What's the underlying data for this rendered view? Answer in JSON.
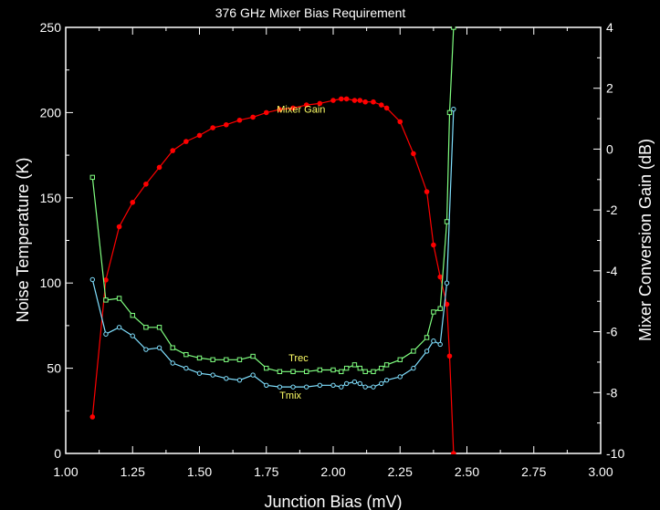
{
  "chart_data": {
    "type": "line",
    "title": "376 GHz Mixer Bias Requirement",
    "xlabel": "Junction Bias (mV)",
    "ylabel": "Noise Temperature (K)",
    "y2label": "Mixer Conversion Gain (dB)",
    "xlim": [
      1.0,
      3.0
    ],
    "ylim": [
      0,
      250
    ],
    "y2lim": [
      -10,
      4
    ],
    "xticks": [
      "1.00",
      "1.25",
      "1.50",
      "1.75",
      "2.00",
      "2.25",
      "2.50",
      "2.75",
      "3.00"
    ],
    "yticks": [
      "0",
      "50",
      "100",
      "150",
      "200",
      "250"
    ],
    "y2ticks": [
      "-10",
      "-8",
      "-6",
      "-4",
      "-2",
      "0",
      "2",
      "4"
    ],
    "grid": false,
    "series": [
      {
        "name": "Mixer Gain",
        "axis": "right",
        "color": "#ff0000",
        "marker": "filled-circle",
        "x": [
          1.1,
          1.15,
          1.2,
          1.25,
          1.3,
          1.35,
          1.4,
          1.45,
          1.5,
          1.55,
          1.6,
          1.65,
          1.7,
          1.75,
          1.8,
          1.85,
          1.9,
          1.95,
          2.0,
          2.03,
          2.05,
          2.08,
          2.1,
          2.12,
          2.15,
          2.18,
          2.2,
          2.25,
          2.3,
          2.35,
          2.375,
          2.4,
          2.425,
          2.435,
          2.45
        ],
        "values": [
          -8.8,
          -4.3,
          -2.55,
          -1.75,
          -1.15,
          -0.6,
          -0.05,
          0.25,
          0.45,
          0.7,
          0.8,
          0.95,
          1.05,
          1.2,
          1.3,
          1.35,
          1.45,
          1.5,
          1.6,
          1.65,
          1.65,
          1.6,
          1.6,
          1.55,
          1.55,
          1.45,
          1.35,
          0.9,
          -0.15,
          -1.4,
          -3.15,
          -4.2,
          -5.1,
          -6.8,
          -10.0
        ]
      },
      {
        "name": "Trec",
        "axis": "left",
        "color": "#80ff80",
        "marker": "open-square",
        "x": [
          1.1,
          1.15,
          1.2,
          1.25,
          1.3,
          1.35,
          1.4,
          1.45,
          1.5,
          1.55,
          1.6,
          1.65,
          1.7,
          1.75,
          1.8,
          1.85,
          1.9,
          1.95,
          2.0,
          2.03,
          2.05,
          2.08,
          2.1,
          2.12,
          2.15,
          2.18,
          2.2,
          2.25,
          2.3,
          2.35,
          2.375,
          2.4,
          2.425,
          2.435,
          2.45
        ],
        "values": [
          162,
          90,
          91,
          81,
          74,
          74,
          62,
          58,
          56,
          55,
          55,
          55,
          57,
          50,
          48,
          48,
          48,
          49,
          49,
          48,
          50,
          52,
          50,
          48,
          48,
          50,
          52,
          55,
          60,
          68,
          83,
          85,
          136,
          200,
          250
        ]
      },
      {
        "name": "Tmix",
        "axis": "left",
        "color": "#80e0ff",
        "marker": "open-circle",
        "x": [
          1.1,
          1.15,
          1.2,
          1.25,
          1.3,
          1.35,
          1.4,
          1.45,
          1.5,
          1.55,
          1.6,
          1.65,
          1.7,
          1.75,
          1.8,
          1.85,
          1.9,
          1.95,
          2.0,
          2.03,
          2.05,
          2.08,
          2.1,
          2.12,
          2.15,
          2.18,
          2.2,
          2.25,
          2.3,
          2.35,
          2.375,
          2.4,
          2.425,
          2.45
        ],
        "values": [
          102,
          70,
          74,
          69,
          61,
          62,
          53,
          50,
          47,
          46,
          44,
          43,
          46,
          40,
          39,
          39,
          39,
          40,
          40,
          39,
          41,
          42,
          41,
          39,
          39,
          41,
          43,
          45,
          50,
          60,
          66,
          64,
          100,
          202
        ]
      }
    ],
    "annotations": [
      {
        "text": "Mixer Gain",
        "x": 1.88,
        "y": 200
      },
      {
        "text": "Trec",
        "x": 1.87,
        "y": 54
      },
      {
        "text": "Tmix",
        "x": 1.84,
        "y": 32
      }
    ],
    "annotation_color": "#ffff66"
  }
}
